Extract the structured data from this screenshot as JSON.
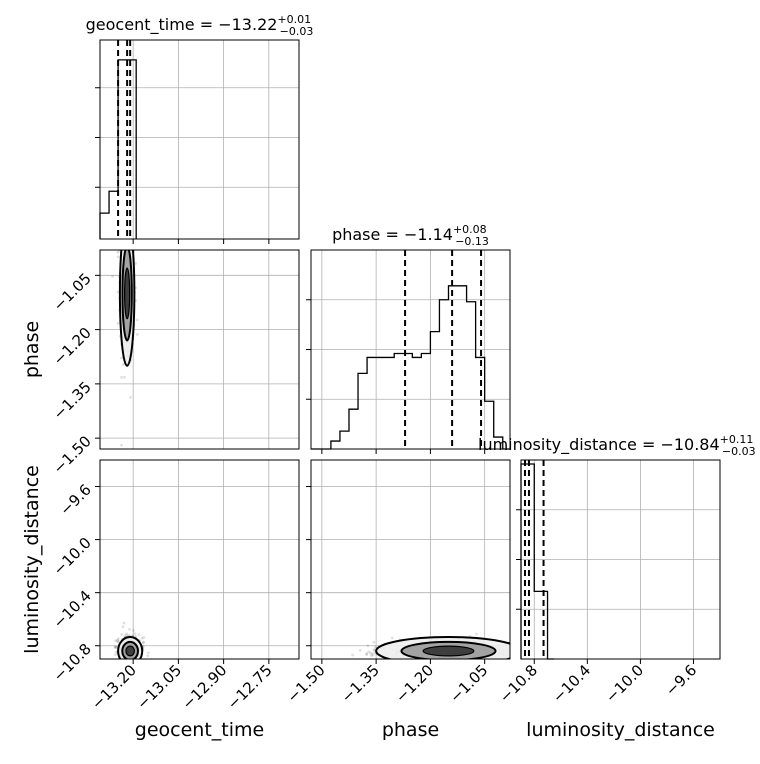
{
  "chart_data": {
    "type": "corner",
    "parameters": [
      "geocent_time",
      "phase",
      "luminosity_distance"
    ],
    "titles": [
      {
        "param": "geocent_time",
        "text": "geocent_time = −13.22",
        "sup": "+0.01",
        "sub": "−0.03"
      },
      {
        "param": "phase",
        "text": "phase = −1.14",
        "sup": "+0.08",
        "sub": "−0.13"
      },
      {
        "param": "luminosity_distance",
        "text": "luminosity_distance = −10.84",
        "sup": "+0.11",
        "sub": "−0.03"
      }
    ],
    "xlabels": [
      "geocent_time",
      "phase",
      "luminosity_distance"
    ],
    "ylabels": [
      "phase",
      "luminosity_distance"
    ],
    "ranges": {
      "geocent_time": [
        -13.31,
        -12.65
      ],
      "phase": [
        -1.53,
        -0.98
      ],
      "luminosity_distance": [
        -10.9,
        -9.4
      ]
    },
    "ticks": {
      "geocent_time": [
        {
          "v": -13.2,
          "label": "−13.20"
        },
        {
          "v": -13.05,
          "label": "−13.05"
        },
        {
          "v": -12.9,
          "label": "−12.90"
        },
        {
          "v": -12.75,
          "label": "−12.75"
        }
      ],
      "phase": [
        {
          "v": -1.5,
          "label": "−1.50"
        },
        {
          "v": -1.35,
          "label": "−1.35"
        },
        {
          "v": -1.2,
          "label": "−1.20"
        },
        {
          "v": -1.05,
          "label": "−1.05"
        }
      ],
      "luminosity_distance": [
        {
          "v": -10.8,
          "label": "−10.8"
        },
        {
          "v": -10.4,
          "label": "−10.4"
        },
        {
          "v": -10.0,
          "label": "−10.0"
        },
        {
          "v": -9.6,
          "label": "−9.6"
        }
      ]
    },
    "quantile_lines": {
      "geocent_time": [
        -13.25,
        -13.22,
        -13.21
      ],
      "phase": [
        -1.27,
        -1.14,
        -1.06
      ],
      "luminosity_distance": [
        -10.87,
        -10.84,
        -10.73
      ]
    },
    "hist_1d": {
      "geocent_time": {
        "edges": [
          -13.31,
          -13.28,
          -13.25,
          -13.22,
          -13.19
        ],
        "counts": [
          0.13,
          0.24,
          0.9,
          0.9
        ]
      },
      "phase": {
        "edges": [
          -1.53,
          -1.5,
          -1.475,
          -1.45,
          -1.425,
          -1.4,
          -1.375,
          -1.35,
          -1.325,
          -1.3,
          -1.275,
          -1.25,
          -1.225,
          -1.2,
          -1.175,
          -1.15,
          -1.125,
          -1.1,
          -1.075,
          -1.05,
          -1.025,
          -1.0,
          -0.98
        ],
        "counts": [
          0,
          0,
          0.04,
          0.09,
          0.2,
          0.38,
          0.46,
          0.46,
          0.46,
          0.48,
          0.48,
          0.46,
          0.48,
          0.59,
          0.75,
          0.82,
          0.82,
          0.74,
          0.46,
          0.24,
          0.06,
          0
        ]
      },
      "luminosity_distance": {
        "edges": [
          -10.9,
          -10.85,
          -10.8,
          -10.75,
          -10.7,
          -10.65
        ],
        "counts": [
          0.98,
          0.98,
          0.34,
          0.34,
          0.0
        ]
      }
    },
    "scatter_2d": [
      {
        "x": "geocent_time",
        "y": "phase",
        "center": [
          -13.22,
          -1.1
        ],
        "spread": [
          0.012,
          0.1
        ]
      },
      {
        "x": "geocent_time",
        "y": "luminosity_distance",
        "center": [
          -13.21,
          -10.85
        ],
        "spread": [
          0.02,
          0.05
        ]
      },
      {
        "x": "phase",
        "y": "luminosity_distance",
        "center": [
          -1.15,
          -10.85
        ],
        "spread": [
          0.1,
          0.04
        ]
      }
    ],
    "grid": true,
    "colors": {
      "hist": "#000000",
      "contour": "#000000",
      "points": "#000000",
      "grid": "#b0b0b0"
    }
  }
}
